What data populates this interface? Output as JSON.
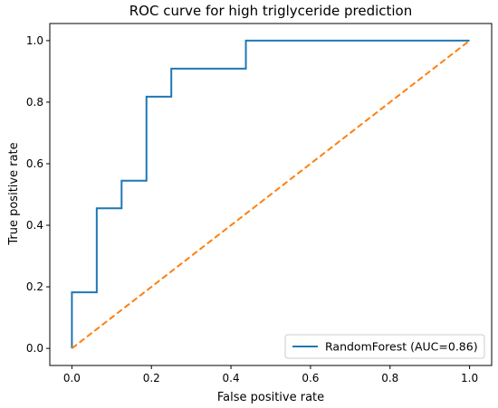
{
  "chart_data": {
    "type": "line",
    "title": "ROC curve for high triglyceride prediction",
    "xlabel": "False positive rate",
    "ylabel": "True positive rate",
    "xlim": [
      0.0,
      1.0
    ],
    "ylim": [
      0.0,
      1.0
    ],
    "xticks": [
      "0.0",
      "0.2",
      "0.4",
      "0.6",
      "0.8",
      "1.0"
    ],
    "yticks": [
      "0.0",
      "0.2",
      "0.4",
      "0.6",
      "0.8",
      "1.0"
    ],
    "grid": false,
    "legend_position": "lower-right",
    "series": [
      {
        "name": "RandomForest (AUC=0.86)",
        "color": "#1f77b4",
        "style": "solid",
        "step": true,
        "x": [
          0.0,
          0.0,
          0.0625,
          0.0625,
          0.125,
          0.125,
          0.1875,
          0.1875,
          0.25,
          0.25,
          0.4375,
          0.4375,
          1.0
        ],
        "y": [
          0.0,
          0.182,
          0.182,
          0.455,
          0.455,
          0.545,
          0.545,
          0.818,
          0.818,
          0.909,
          0.909,
          1.0,
          1.0
        ]
      },
      {
        "color": "#ff7f0e",
        "style": "dashed",
        "x": [
          0.0,
          1.0
        ],
        "y": [
          0.0,
          1.0
        ]
      }
    ]
  }
}
